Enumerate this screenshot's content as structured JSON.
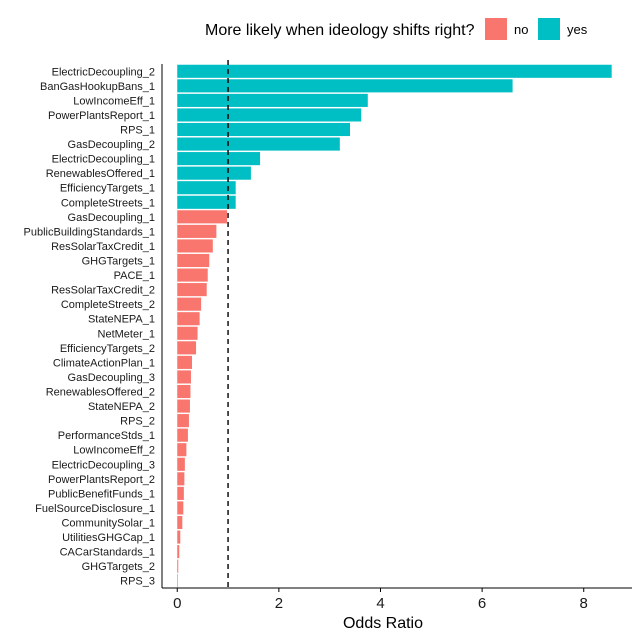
{
  "chart_data": {
    "type": "bar",
    "orientation": "horizontal",
    "xlabel": "Odds Ratio",
    "ylabel": "",
    "xlim": [
      -0.3,
      8.95
    ],
    "xticks": [
      0,
      2,
      4,
      6,
      8
    ],
    "reference_line": {
      "x": 1,
      "style": "dashed"
    },
    "grid": false,
    "legend": {
      "title": "More likely when ideology shifts right?",
      "placement": "top",
      "entries": [
        {
          "label": "no",
          "color": "#F8766D"
        },
        {
          "label": "yes",
          "color": "#00BFC4"
        }
      ]
    },
    "categories": [
      "ElectricDecoupling_2",
      "BanGasHookupBans_1",
      "LowIncomeEff_1",
      "PowerPlantsReport_1",
      "RPS_1",
      "GasDecoupling_2",
      "ElectricDecoupling_1",
      "RenewablesOffered_1",
      "EfficiencyTargets_1",
      "CompleteStreets_1",
      "GasDecoupling_1",
      "PublicBuildingStandards_1",
      "ResSolarTaxCredit_1",
      "GHGTargets_1",
      "PACE_1",
      "ResSolarTaxCredit_2",
      "CompleteStreets_2",
      "StateNEPA_1",
      "NetMeter_1",
      "EfficiencyTargets_2",
      "ClimateActionPlan_1",
      "GasDecoupling_3",
      "RenewablesOffered_2",
      "StateNEPA_2",
      "RPS_2",
      "PerformanceStds_1",
      "LowIncomeEff_2",
      "ElectricDecoupling_3",
      "PowerPlantsReport_2",
      "PublicBenefitFunds_1",
      "FuelSourceDisclosure_1",
      "CommunitySolar_1",
      "UtilitiesGHGCap_1",
      "CACarStandards_1",
      "GHGTargets_2",
      "RPS_3"
    ],
    "values": [
      8.55,
      6.6,
      3.75,
      3.62,
      3.4,
      3.2,
      1.63,
      1.45,
      1.15,
      1.15,
      0.98,
      0.77,
      0.7,
      0.63,
      0.6,
      0.58,
      0.47,
      0.44,
      0.4,
      0.37,
      0.29,
      0.27,
      0.26,
      0.25,
      0.23,
      0.21,
      0.18,
      0.15,
      0.14,
      0.13,
      0.12,
      0.1,
      0.06,
      0.04,
      0.02,
      0.01
    ],
    "groups": [
      "yes",
      "yes",
      "yes",
      "yes",
      "yes",
      "yes",
      "yes",
      "yes",
      "yes",
      "yes",
      "no",
      "no",
      "no",
      "no",
      "no",
      "no",
      "no",
      "no",
      "no",
      "no",
      "no",
      "no",
      "no",
      "no",
      "no",
      "no",
      "no",
      "no",
      "no",
      "no",
      "no",
      "no",
      "no",
      "no",
      "no",
      "no"
    ]
  }
}
